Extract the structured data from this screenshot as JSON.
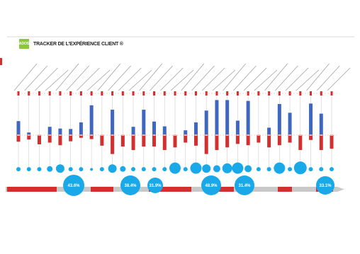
{
  "header": {
    "logo_text": "ADOS",
    "title": "TRACKER DE L'EXPÉRIENCE CLIENT ®"
  },
  "colors": {
    "positive": "#3f67c0",
    "negative": "#d42f2f",
    "bubble": "#1aa9e8",
    "phase": "#d42f2f",
    "arrow": "#c9c9c9",
    "accent": "#8cc63f"
  },
  "chart_data": {
    "type": "bar",
    "title": "",
    "xlabel": "",
    "ylabel": "",
    "ylim": [
      -10,
      10
    ],
    "stages": [
      {
        "pos": 3.2,
        "neg": -1.5,
        "bubble": "",
        "r": 3
      },
      {
        "pos": 0.6,
        "neg": -1.0,
        "bubble": "",
        "r": 3
      },
      {
        "pos": 0.0,
        "neg": -2.1,
        "bubble": "",
        "r": 3
      },
      {
        "pos": 1.9,
        "neg": -1.7,
        "bubble": "",
        "r": 4
      },
      {
        "pos": 1.5,
        "neg": -2.3,
        "bubble": "",
        "r": 6
      },
      {
        "pos": 1.4,
        "neg": -1.4,
        "bubble": "",
        "r": 3
      },
      {
        "pos": 2.9,
        "neg": -0.6,
        "bubble": "",
        "r": 3
      },
      {
        "pos": 6.8,
        "neg": -0.9,
        "bubble": "",
        "r": 2
      },
      {
        "pos": 0.0,
        "neg": -2.4,
        "bubble": "",
        "r": 3
      },
      {
        "pos": 5.8,
        "neg": -4.3,
        "bubble": "",
        "r": 6
      },
      {
        "pos": 0.0,
        "neg": -2.6,
        "bubble": "",
        "r": 4
      },
      {
        "pos": 1.9,
        "neg": -3.4,
        "bubble": "",
        "r": 3
      },
      {
        "pos": 5.8,
        "neg": -2.6,
        "bubble": "",
        "r": 3
      },
      {
        "pos": 3.1,
        "neg": -2.6,
        "bubble": "",
        "r": 3
      },
      {
        "pos": 2.0,
        "neg": -3.4,
        "bubble": "",
        "r": 3
      },
      {
        "pos": 0.0,
        "neg": -2.8,
        "bubble": "",
        "r": 8
      },
      {
        "pos": 1.1,
        "neg": -1.7,
        "bubble": "",
        "r": 3
      },
      {
        "pos": 2.9,
        "neg": -2.4,
        "bubble": "",
        "r": 8
      },
      {
        "pos": 5.6,
        "neg": -4.3,
        "bubble": "",
        "r": 6
      },
      {
        "pos": 8.0,
        "neg": -3.4,
        "bubble": "",
        "r": 5
      },
      {
        "pos": 8.0,
        "neg": -2.8,
        "bubble": "",
        "r": 7
      },
      {
        "pos": 3.3,
        "neg": -2.0,
        "bubble": "",
        "r": 8
      },
      {
        "pos": 7.8,
        "neg": -2.3,
        "bubble": "",
        "r": 5
      },
      {
        "pos": 0.0,
        "neg": -1.7,
        "bubble": "",
        "r": 3
      },
      {
        "pos": 1.7,
        "neg": -2.8,
        "bubble": "",
        "r": 3
      },
      {
        "pos": 7.1,
        "neg": -2.3,
        "bubble": "",
        "r": 8
      },
      {
        "pos": 5.1,
        "neg": -1.7,
        "bubble": "",
        "r": 3
      },
      {
        "pos": 0.0,
        "neg": -3.4,
        "bubble": "",
        "r": 9
      },
      {
        "pos": 7.2,
        "neg": -1.1,
        "bubble": "",
        "r": 3
      },
      {
        "pos": 4.9,
        "neg": -3.4,
        "bubble": "",
        "r": 3
      },
      {
        "pos": 0.0,
        "neg": -3.1,
        "bubble": "",
        "r": 3
      }
    ],
    "phases": [
      {
        "label": "",
        "value": "43.6%"
      },
      {
        "label": "",
        "value": "38.4%"
      },
      {
        "label": "",
        "value": "31.9%"
      },
      {
        "label": "",
        "value": "48.9%"
      },
      {
        "label": "",
        "value": "31.4%"
      },
      {
        "label": "",
        "value": "33.1%"
      }
    ]
  }
}
